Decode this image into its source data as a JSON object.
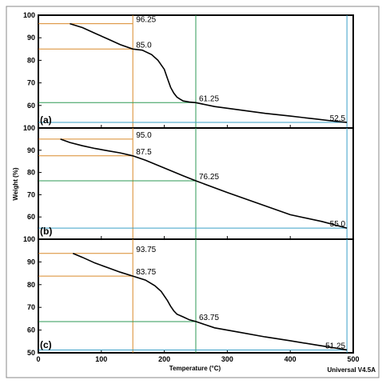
{
  "chart_data": [
    {
      "type": "line",
      "panel_label": "(a)",
      "xlim": [
        0,
        500
      ],
      "ylim": [
        50,
        100
      ],
      "yticks": [
        "100",
        "90",
        "80",
        "70",
        "60"
      ],
      "series": [
        {
          "x": [
            50,
            70,
            90,
            110,
            130,
            150,
            165,
            180,
            190,
            200,
            205,
            210,
            215,
            220,
            225,
            230,
            240,
            250,
            280,
            320,
            360,
            400,
            440,
            470,
            490
          ],
          "y": [
            96.25,
            94.5,
            92.0,
            89.5,
            87.0,
            85.0,
            84.5,
            82.5,
            80.0,
            76.0,
            72.0,
            68.0,
            65.5,
            63.7,
            62.8,
            62.0,
            61.5,
            61.25,
            59.5,
            58.0,
            56.5,
            55.3,
            54.0,
            53.0,
            52.5
          ]
        }
      ],
      "annotations": [
        {
          "x": 150,
          "y": 96.25,
          "label": "96.25"
        },
        {
          "x": 150,
          "y": 85.0,
          "label": "85.0"
        },
        {
          "x": 250,
          "y": 61.25,
          "label": "61.25"
        },
        {
          "x": 490,
          "y": 52.5,
          "label": "52.5"
        }
      ]
    },
    {
      "type": "line",
      "panel_label": "(b)",
      "xlim": [
        0,
        500
      ],
      "ylim": [
        50,
        100
      ],
      "yticks": [
        "100",
        "90",
        "80",
        "70",
        "60"
      ],
      "series": [
        {
          "x": [
            35,
            50,
            70,
            90,
            110,
            130,
            150,
            170,
            200,
            230,
            250,
            300,
            350,
            400,
            450,
            490
          ],
          "y": [
            95.0,
            93.5,
            92.0,
            90.8,
            89.8,
            88.8,
            87.5,
            85.5,
            82.0,
            78.5,
            76.25,
            71.0,
            66.0,
            61.0,
            58.0,
            55.0
          ]
        }
      ],
      "annotations": [
        {
          "x": 150,
          "y": 95.0,
          "label": "95.0"
        },
        {
          "x": 150,
          "y": 87.5,
          "label": "87.5"
        },
        {
          "x": 250,
          "y": 76.25,
          "label": "76.25"
        },
        {
          "x": 490,
          "y": 55.0,
          "label": "55.0"
        }
      ]
    },
    {
      "type": "line",
      "panel_label": "(c)",
      "xlim": [
        0,
        500
      ],
      "ylim": [
        50,
        100
      ],
      "yticks": [
        "100",
        "90",
        "80",
        "70",
        "60",
        "50"
      ],
      "xticks": [
        "0",
        "100",
        "200",
        "300",
        "400",
        "500"
      ],
      "series": [
        {
          "x": [
            55,
            70,
            90,
            110,
            130,
            150,
            170,
            185,
            195,
            205,
            210,
            215,
            220,
            230,
            240,
            250,
            280,
            320,
            360,
            400,
            440,
            470,
            490
          ],
          "y": [
            93.75,
            92.0,
            89.5,
            87.5,
            85.5,
            83.75,
            82.0,
            79.5,
            77.0,
            73.0,
            70.5,
            68.5,
            67.0,
            65.8,
            64.5,
            63.75,
            61.0,
            59.0,
            57.0,
            55.3,
            53.5,
            52.2,
            51.25
          ]
        }
      ],
      "annotations": [
        {
          "x": 150,
          "y": 93.75,
          "label": "93.75"
        },
        {
          "x": 150,
          "y": 83.75,
          "label": "83.75"
        },
        {
          "x": 250,
          "y": 63.75,
          "label": "63.75"
        },
        {
          "x": 490,
          "y": 51.25,
          "label": "51.25"
        }
      ]
    }
  ],
  "xlabel": "Temperature (°C)",
  "ylabel": "Weight (%)",
  "footer": "Universal V4.5A",
  "colors": {
    "curve": "#000000",
    "guide_150": "#d98a2b",
    "guide_250": "#2e9a55",
    "guide_490": "#3aa0c8",
    "panel_border": "#000000",
    "frame_border": "#888888"
  }
}
